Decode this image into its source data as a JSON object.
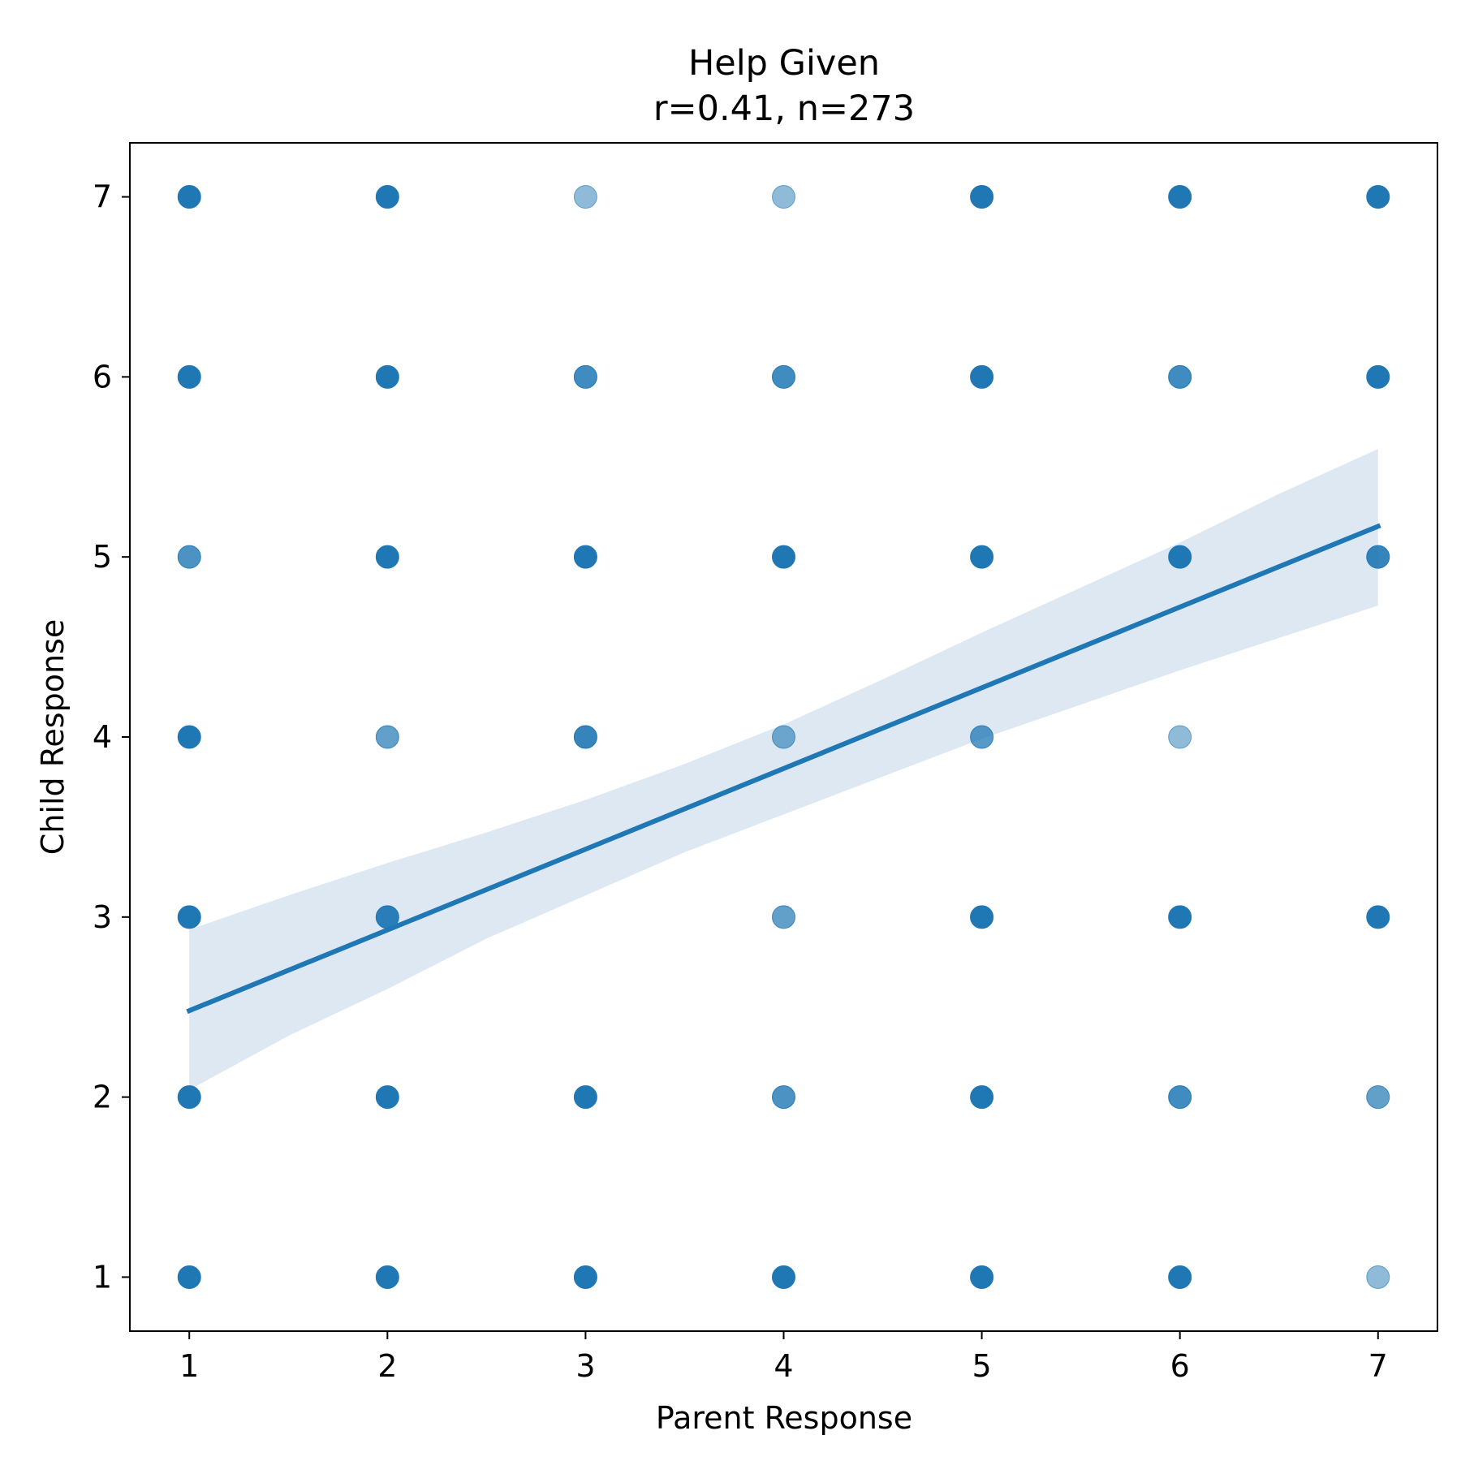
{
  "chart_data": {
    "type": "scatter",
    "title": "Help Given",
    "subtitle": "r=0.41, n=273",
    "xlabel": "Parent Response",
    "ylabel": "Child Response",
    "xlim": [
      0.7,
      7.3
    ],
    "ylim": [
      0.7,
      7.3
    ],
    "xticks": [
      "1",
      "2",
      "3",
      "4",
      "5",
      "6",
      "7"
    ],
    "yticks": [
      "1",
      "2",
      "3",
      "4",
      "5",
      "6",
      "7"
    ],
    "grid": false,
    "colors": {
      "points": "#1f77b4",
      "line": "#1f77b4",
      "band": "#dde8f3"
    },
    "points": [
      {
        "x": 1,
        "y": 7,
        "o": 1.0
      },
      {
        "x": 2,
        "y": 7,
        "o": 1.0
      },
      {
        "x": 3,
        "y": 7,
        "o": 0.5
      },
      {
        "x": 4,
        "y": 7,
        "o": 0.5
      },
      {
        "x": 5,
        "y": 7,
        "o": 1.0
      },
      {
        "x": 6,
        "y": 7,
        "o": 1.0
      },
      {
        "x": 7,
        "y": 7,
        "o": 1.0
      },
      {
        "x": 1,
        "y": 6,
        "o": 1.0
      },
      {
        "x": 2,
        "y": 6,
        "o": 1.0
      },
      {
        "x": 3,
        "y": 6,
        "o": 0.85
      },
      {
        "x": 4,
        "y": 6,
        "o": 0.85
      },
      {
        "x": 5,
        "y": 6,
        "o": 1.0
      },
      {
        "x": 6,
        "y": 6,
        "o": 0.85
      },
      {
        "x": 7,
        "y": 6,
        "o": 1.0
      },
      {
        "x": 1,
        "y": 5,
        "o": 0.8
      },
      {
        "x": 2,
        "y": 5,
        "o": 1.0
      },
      {
        "x": 3,
        "y": 5,
        "o": 1.0
      },
      {
        "x": 4,
        "y": 5,
        "o": 1.0
      },
      {
        "x": 5,
        "y": 5,
        "o": 1.0
      },
      {
        "x": 6,
        "y": 5,
        "o": 1.0
      },
      {
        "x": 7,
        "y": 5,
        "o": 0.9
      },
      {
        "x": 1,
        "y": 4,
        "o": 1.0
      },
      {
        "x": 2,
        "y": 4,
        "o": 0.7
      },
      {
        "x": 3,
        "y": 4,
        "o": 0.9
      },
      {
        "x": 4,
        "y": 4,
        "o": 0.6
      },
      {
        "x": 5,
        "y": 4,
        "o": 0.75
      },
      {
        "x": 6,
        "y": 4,
        "o": 0.5
      },
      {
        "x": 1,
        "y": 3,
        "o": 1.0
      },
      {
        "x": 2,
        "y": 3,
        "o": 0.95
      },
      {
        "x": 4,
        "y": 3,
        "o": 0.7
      },
      {
        "x": 5,
        "y": 3,
        "o": 1.0
      },
      {
        "x": 6,
        "y": 3,
        "o": 1.0
      },
      {
        "x": 7,
        "y": 3,
        "o": 1.0
      },
      {
        "x": 1,
        "y": 2,
        "o": 1.0
      },
      {
        "x": 2,
        "y": 2,
        "o": 1.0
      },
      {
        "x": 3,
        "y": 2,
        "o": 1.0
      },
      {
        "x": 4,
        "y": 2,
        "o": 0.8
      },
      {
        "x": 5,
        "y": 2,
        "o": 1.0
      },
      {
        "x": 6,
        "y": 2,
        "o": 0.85
      },
      {
        "x": 7,
        "y": 2,
        "o": 0.7
      },
      {
        "x": 1,
        "y": 1,
        "o": 1.0
      },
      {
        "x": 2,
        "y": 1,
        "o": 1.0
      },
      {
        "x": 3,
        "y": 1,
        "o": 1.0
      },
      {
        "x": 4,
        "y": 1,
        "o": 1.0
      },
      {
        "x": 5,
        "y": 1,
        "o": 1.0
      },
      {
        "x": 6,
        "y": 1,
        "o": 1.0
      },
      {
        "x": 7,
        "y": 1,
        "o": 0.5
      }
    ],
    "regression_line": {
      "x": [
        1,
        7
      ],
      "y": [
        2.48,
        5.17
      ]
    },
    "confidence_band": {
      "x": [
        1,
        1.5,
        2,
        2.5,
        3,
        3.5,
        4,
        4.5,
        5,
        5.5,
        6,
        6.5,
        7
      ],
      "upper": [
        2.93,
        3.12,
        3.3,
        3.47,
        3.65,
        3.85,
        4.07,
        4.32,
        4.58,
        4.83,
        5.08,
        5.35,
        5.6
      ],
      "lower": [
        2.04,
        2.34,
        2.6,
        2.88,
        3.12,
        3.36,
        3.57,
        3.78,
        3.99,
        4.18,
        4.37,
        4.55,
        4.73
      ]
    }
  }
}
